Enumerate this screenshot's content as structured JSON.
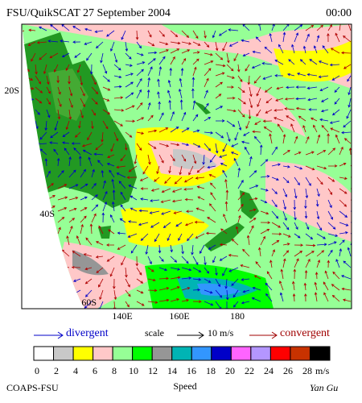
{
  "header": {
    "title": "FSU/QuikSCAT 27 September 2004",
    "time": "00:00"
  },
  "map": {
    "lat_labels": [
      "20S",
      "40S",
      "60S"
    ],
    "lon_labels": [
      "140E",
      "160E",
      "180"
    ]
  },
  "legend": {
    "divergent": "divergent",
    "scale": "scale",
    "scale_value": "10 m/s",
    "convergent": "convergent"
  },
  "colorbar": {
    "title": "Speed",
    "unit": "m/s",
    "ticks": [
      0,
      2,
      4,
      6,
      8,
      10,
      12,
      14,
      16,
      18,
      20,
      22,
      24,
      26,
      28
    ],
    "colors": [
      "#ffffff",
      "#c8c8c8",
      "#ffff00",
      "#ffc8c8",
      "#96ff96",
      "#00ff00",
      "#969696",
      "#00b4b4",
      "#3296ff",
      "#0000c8",
      "#ff64ff",
      "#b496ff",
      "#ff0000",
      "#c83200",
      "#000000"
    ]
  },
  "footer": {
    "left": "COAPS-FSU",
    "right": "Yan Gu"
  }
}
